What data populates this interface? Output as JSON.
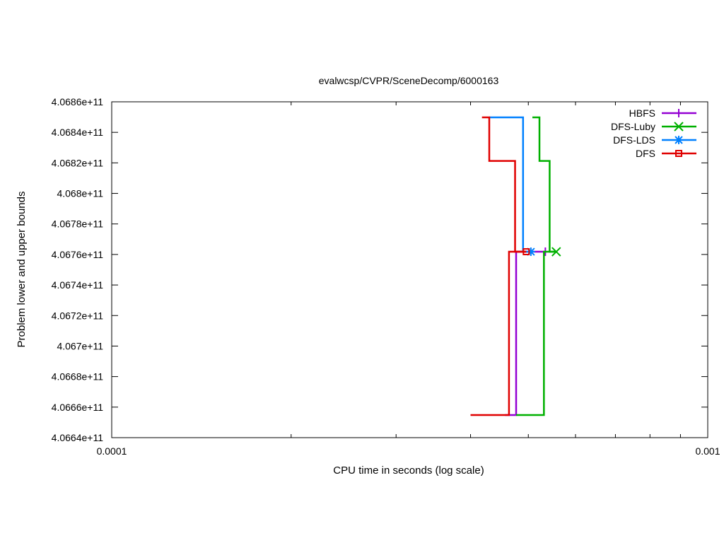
{
  "chart_data": {
    "type": "line",
    "title": "evalwcsp/CVPR/SceneDecomp/6000163",
    "xlabel": "CPU time in seconds (log scale)",
    "ylabel": "Problem lower and upper bounds",
    "x_scale": "log",
    "xlim": [
      0.0001,
      0.001
    ],
    "ylim": [
      406640000000,
      406860000000
    ],
    "x_ticks": [
      0.0001,
      0.001
    ],
    "x_tick_labels": [
      "0.0001",
      "0.001"
    ],
    "y_ticks": [
      406640000000,
      406660000000,
      406680000000,
      406700000000,
      406720000000,
      406740000000,
      406760000000,
      406780000000,
      406800000000,
      406820000000,
      406840000000,
      406860000000
    ],
    "y_tick_labels": [
      "4.0664e+11",
      "4.0666e+11",
      "4.0668e+11",
      "4.067e+11",
      "4.0672e+11",
      "4.0674e+11",
      "4.0676e+11",
      "4.0678e+11",
      "4.068e+11",
      "4.0682e+11",
      "4.0684e+11",
      "4.0686e+11"
    ],
    "grid": false,
    "legend_position": "top-right",
    "series": [
      {
        "name": "HBFS",
        "color": "#9400d3",
        "marker": "plus",
        "lower": [
          [
            0.000457,
            406654800000
          ],
          [
            0.000477,
            406654800000
          ],
          [
            0.000477,
            406761800000
          ],
          [
            0.000534,
            406761800000
          ]
        ],
        "upper": [],
        "final": [
          0.000534,
          406761800000
        ]
      },
      {
        "name": "DFS-Luby",
        "color": "#00b000",
        "marker": "x",
        "lower": [
          [
            0.000477,
            406654800000
          ],
          [
            0.000531,
            406654800000
          ],
          [
            0.000531,
            406761800000
          ],
          [
            0.000557,
            406761800000
          ]
        ],
        "upper": [
          [
            0.000508,
            406849800000
          ],
          [
            0.000522,
            406849800000
          ],
          [
            0.000522,
            406821300000
          ],
          [
            0.000543,
            406821300000
          ],
          [
            0.000543,
            406761800000
          ],
          [
            0.000557,
            406761800000
          ]
        ],
        "final": [
          0.000557,
          406761800000
        ]
      },
      {
        "name": "DFS-LDS",
        "color": "#0080ff",
        "marker": "star",
        "lower": [],
        "upper": [
          [
            0.00043,
            406849800000
          ],
          [
            0.00049,
            406849800000
          ],
          [
            0.00049,
            406761800000
          ],
          [
            0.000505,
            406761800000
          ]
        ],
        "final": [
          0.000505,
          406761800000
        ]
      },
      {
        "name": "DFS",
        "color": "#e00000",
        "marker": "square",
        "lower": [
          [
            0.0004,
            406654800000
          ],
          [
            0.000464,
            406654800000
          ],
          [
            0.000464,
            406761800000
          ],
          [
            0.000496,
            406761800000
          ]
        ],
        "upper": [
          [
            0.000418,
            406849800000
          ],
          [
            0.00043,
            406849800000
          ],
          [
            0.00043,
            406821300000
          ],
          [
            0.000475,
            406821300000
          ],
          [
            0.000475,
            406761800000
          ],
          [
            0.000496,
            406761800000
          ]
        ],
        "final": [
          0.000496,
          406761800000
        ]
      }
    ]
  }
}
